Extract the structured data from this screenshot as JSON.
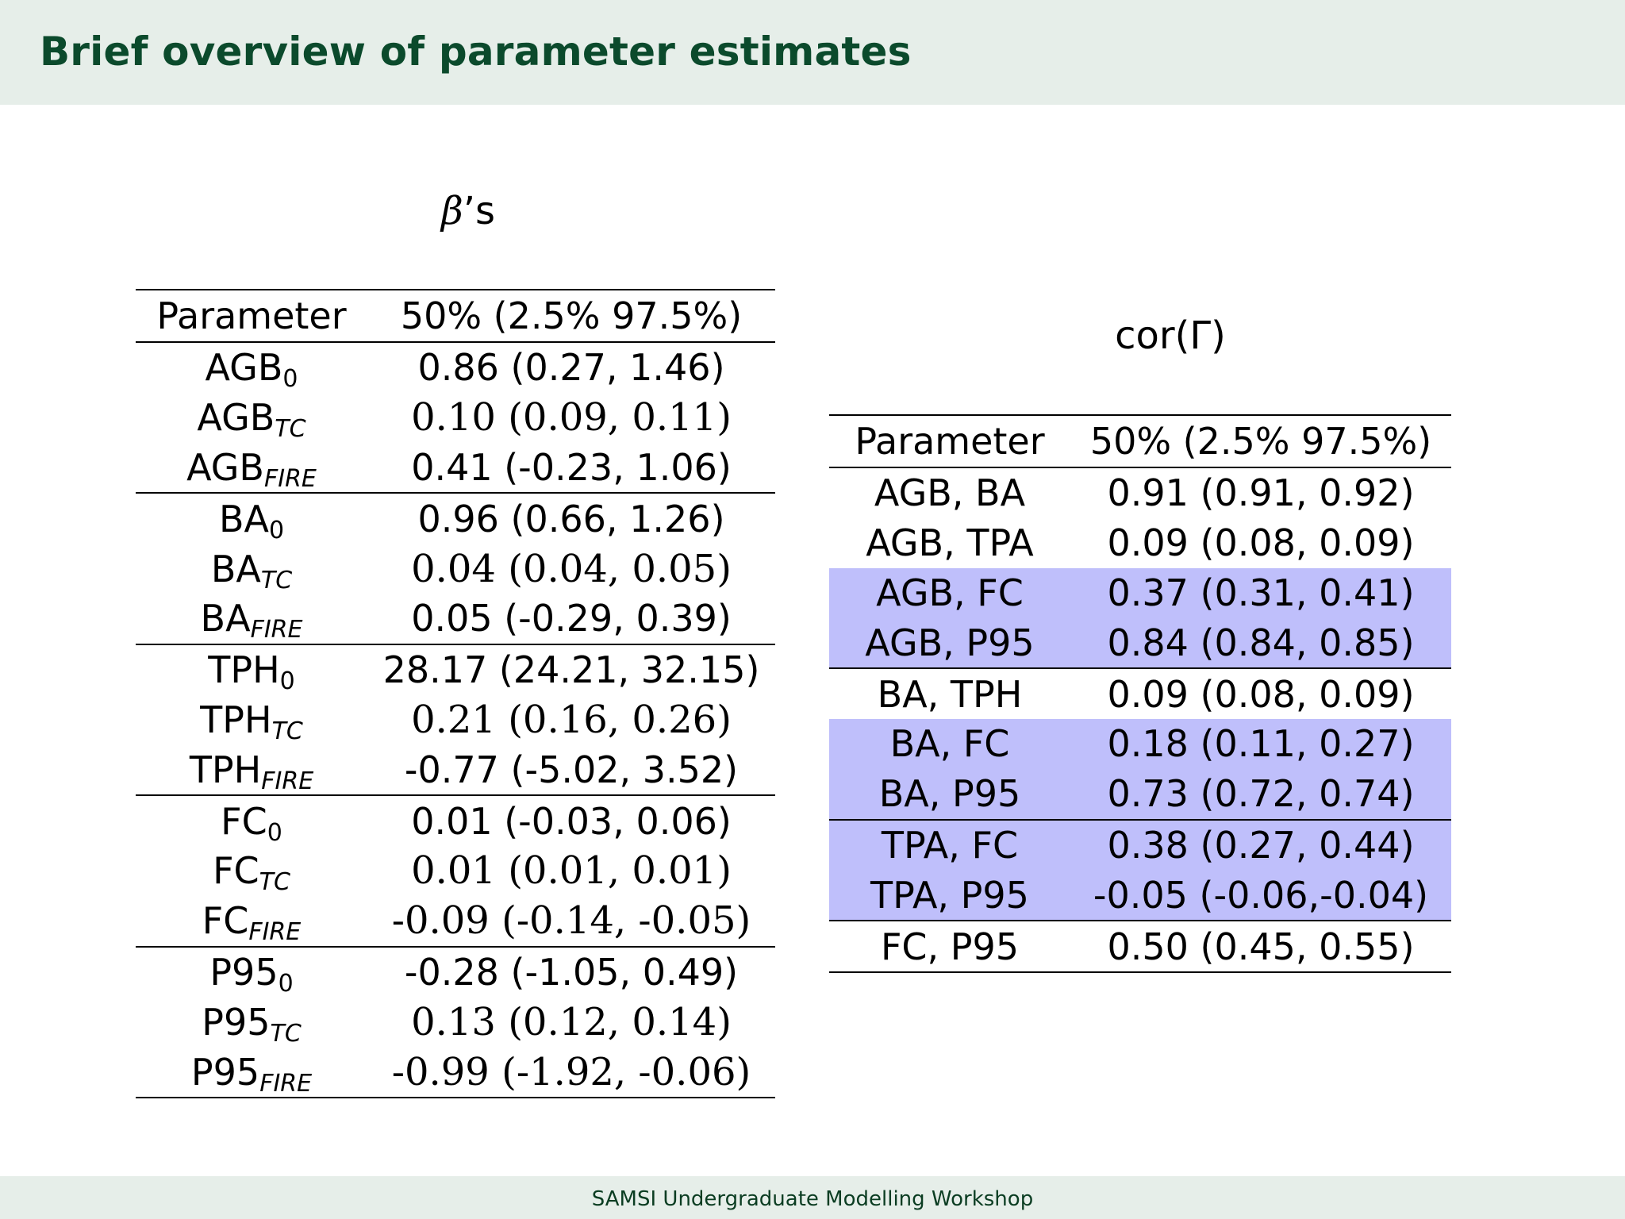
{
  "header": {
    "title": "Brief overview of parameter estimates"
  },
  "footer": {
    "text": "SAMSI Undergraduate Modelling Workshop"
  },
  "left_table": {
    "caption_symbol": "β",
    "caption_suffix": "’s",
    "headers": [
      "Parameter",
      "50% (2.5% 97.5%)"
    ],
    "rows": [
      {
        "base": "AGB",
        "sub": "0",
        "value": "0.86 (0.27, 1.46)",
        "bold": false,
        "group_start": false
      },
      {
        "base": "AGB",
        "sub": "TC",
        "value": "0.10 (0.09, 0.11)",
        "bold": true,
        "group_start": false
      },
      {
        "base": "AGB",
        "sub": "FIRE",
        "value": "0.41 (-0.23, 1.06)",
        "bold": false,
        "group_start": false
      },
      {
        "base": "BA",
        "sub": "0",
        "value": "0.96 (0.66, 1.26)",
        "bold": false,
        "group_start": true
      },
      {
        "base": "BA",
        "sub": "TC",
        "value": "0.04 (0.04, 0.05)",
        "bold": true,
        "group_start": false
      },
      {
        "base": "BA",
        "sub": "FIRE",
        "value": "0.05 (-0.29, 0.39)",
        "bold": false,
        "group_start": false
      },
      {
        "base": "TPH",
        "sub": "0",
        "value": "28.17 (24.21, 32.15)",
        "bold": false,
        "group_start": true
      },
      {
        "base": "TPH",
        "sub": "TC",
        "value": "0.21 (0.16, 0.26)",
        "bold": true,
        "group_start": false
      },
      {
        "base": "TPH",
        "sub": "FIRE",
        "value": "-0.77 (-5.02, 3.52)",
        "bold": false,
        "group_start": false
      },
      {
        "base": "FC",
        "sub": "0",
        "value": "0.01 (-0.03, 0.06)",
        "bold": false,
        "group_start": true
      },
      {
        "base": "FC",
        "sub": "TC",
        "value": "0.01 (0.01, 0.01)",
        "bold": true,
        "group_start": false
      },
      {
        "base": "FC",
        "sub": "FIRE",
        "value": "-0.09 (-0.14, -0.05)",
        "bold": true,
        "group_start": false
      },
      {
        "base": "P95",
        "sub": "0",
        "value": "-0.28 (-1.05, 0.49)",
        "bold": false,
        "group_start": true
      },
      {
        "base": "P95",
        "sub": "TC",
        "value": "0.13 (0.12, 0.14)",
        "bold": true,
        "group_start": false
      },
      {
        "base": "P95",
        "sub": "FIRE",
        "value": "-0.99 (-1.92, -0.06)",
        "bold": true,
        "group_start": false
      }
    ]
  },
  "right_table": {
    "caption": "cor(Γ)",
    "headers": [
      "Parameter",
      "50% (2.5% 97.5%)"
    ],
    "highlight_color": "#bfbffb",
    "rows": [
      {
        "param": "AGB, BA",
        "value": "0.91 (0.91, 0.92)",
        "highlight": false,
        "group_start": false
      },
      {
        "param": "AGB, TPA",
        "value": "0.09 (0.08, 0.09)",
        "highlight": false,
        "group_start": false
      },
      {
        "param": "AGB, FC",
        "value": "0.37 (0.31, 0.41)",
        "highlight": true,
        "group_start": false
      },
      {
        "param": "AGB, P95",
        "value": "0.84 (0.84, 0.85)",
        "highlight": true,
        "group_start": false
      },
      {
        "param": "BA, TPH",
        "value": "0.09 (0.08, 0.09)",
        "highlight": false,
        "group_start": true
      },
      {
        "param": "BA, FC",
        "value": "0.18 (0.11, 0.27)",
        "highlight": true,
        "group_start": false
      },
      {
        "param": "BA, P95",
        "value": "0.73 (0.72, 0.74)",
        "highlight": true,
        "group_start": false
      },
      {
        "param": "TPA, FC",
        "value": "0.38 (0.27, 0.44)",
        "highlight": true,
        "group_start": true
      },
      {
        "param": "TPA, P95",
        "value": "-0.05 (-0.06,-0.04)",
        "highlight": true,
        "group_start": false
      },
      {
        "param": "FC, P95",
        "value": "0.50 (0.45, 0.55)",
        "highlight": false,
        "group_start": true
      }
    ]
  }
}
